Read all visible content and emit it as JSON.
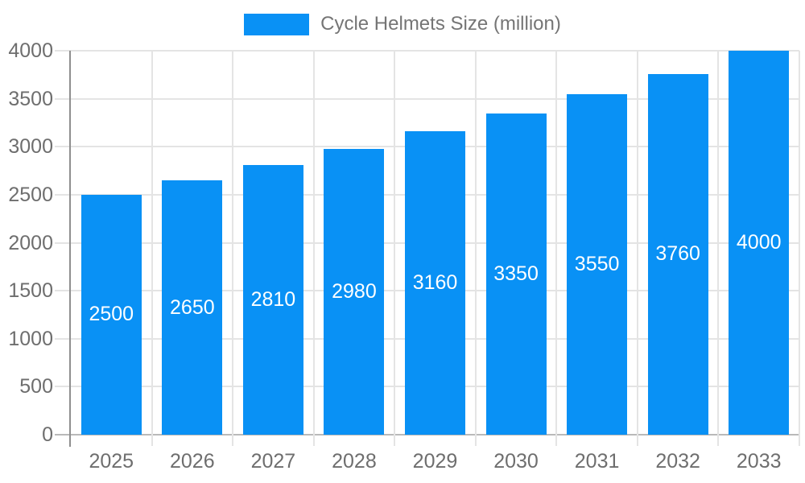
{
  "chart_data": {
    "type": "bar",
    "title": "Cycle Helmets Size (million)",
    "legend_label": "Cycle Helmets Size (million)",
    "legend_position": "top",
    "categories": [
      "2025",
      "2026",
      "2027",
      "2028",
      "2029",
      "2030",
      "2031",
      "2032",
      "2033"
    ],
    "values": [
      2500,
      2650,
      2810,
      2980,
      3160,
      3350,
      3550,
      3760,
      4000
    ],
    "xlabel": "",
    "ylabel": "",
    "ylim": [
      0,
      4000
    ],
    "yticks": [
      0,
      500,
      1000,
      1500,
      2000,
      2500,
      3000,
      3500,
      4000
    ],
    "grid": true,
    "bar_color": "#0991f5",
    "bar_label_color": "#ffffff",
    "axis_text_color": "#6e6e6e",
    "legend_text_color": "#757575",
    "gridline_color": "#e4e4e4"
  }
}
